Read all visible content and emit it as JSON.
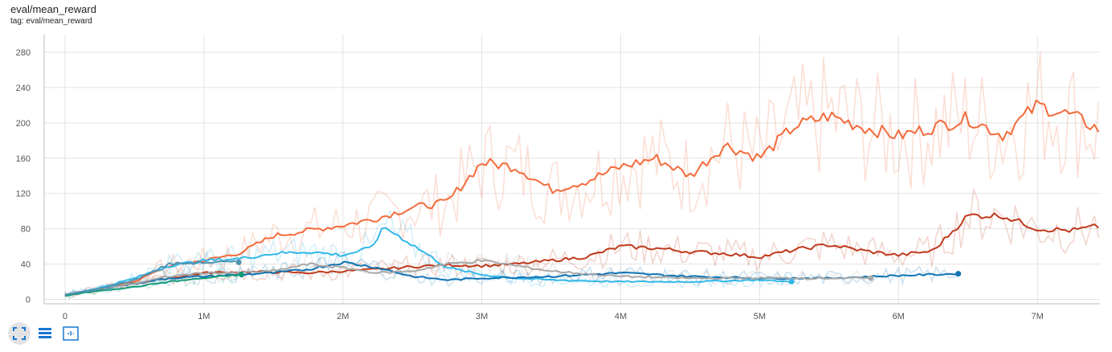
{
  "title": "eval/mean_reward",
  "tag": "tag: eval/mean_reward",
  "toolbar": {
    "icons": [
      "fit-to-screen-icon",
      "data-table-icon",
      "zoom-selection-icon"
    ]
  },
  "colors": {
    "orange": "#f26b3c",
    "dark_red": "#bf3a1c",
    "light_blue": "#33b8e8",
    "dark_blue": "#0f73b3",
    "gray": "#a8a8a8",
    "teal": "#129c7a",
    "slate": "#4d93b3"
  },
  "chart_data": {
    "type": "line",
    "title": "",
    "xlabel": "",
    "ylabel": "",
    "xlim": [
      -150000,
      7450000
    ],
    "ylim": [
      -5,
      300
    ],
    "x_ticks": [
      0,
      1000000,
      2000000,
      3000000,
      4000000,
      5000000,
      6000000,
      7000000
    ],
    "x_tick_labels": [
      "0",
      "1M",
      "2M",
      "3M",
      "4M",
      "5M",
      "6M",
      "7M"
    ],
    "y_ticks": [
      0,
      40,
      80,
      120,
      160,
      200,
      240,
      280
    ],
    "y_tick_labels": [
      "0",
      "40",
      "80",
      "120",
      "160",
      "200",
      "240",
      "280"
    ],
    "grid": true,
    "series": [
      {
        "color": "#f26b3c",
        "x": [
          0,
          250000,
          500000,
          750000,
          1000000,
          1250000,
          1500000,
          1750000,
          2000000,
          2250000,
          2500000,
          2750000,
          3000000,
          3250000,
          3500000,
          3750000,
          4000000,
          4250000,
          4500000,
          4750000,
          5000000,
          5250000,
          5500000,
          5750000,
          6000000,
          6250000,
          6500000,
          6750000,
          7000000,
          7250000,
          7450000
        ],
        "y": [
          5,
          12,
          20,
          38,
          44,
          52,
          72,
          78,
          84,
          92,
          104,
          110,
          155,
          150,
          124,
          134,
          150,
          160,
          140,
          175,
          160,
          196,
          208,
          195,
          185,
          195,
          205,
          186,
          220,
          208,
          192
        ]
      },
      {
        "color": "#bf3a1c",
        "x": [
          0,
          250000,
          500000,
          750000,
          1000000,
          1250000,
          1500000,
          1750000,
          2000000,
          2250000,
          2500000,
          2750000,
          3000000,
          3250000,
          3500000,
          3750000,
          4000000,
          4250000,
          4500000,
          4750000,
          5000000,
          5250000,
          5500000,
          5750000,
          6000000,
          6250000,
          6500000,
          6750000,
          7000000,
          7250000,
          7450000
        ],
        "y": [
          5,
          12,
          18,
          24,
          30,
          31,
          31,
          30,
          32,
          34,
          37,
          39,
          38,
          40,
          44,
          48,
          60,
          58,
          54,
          52,
          48,
          56,
          62,
          55,
          50,
          55,
          95,
          95,
          80,
          78,
          83
        ]
      },
      {
        "color": "#33b8e8",
        "x": [
          0,
          250000,
          500000,
          750000,
          1000000,
          1250000,
          1500000,
          1750000,
          2000000,
          2200000,
          2300000,
          2500000,
          2750000,
          3000000,
          3250000,
          3500000,
          4000000,
          4500000,
          5000000,
          5230000
        ],
        "y": [
          5,
          13,
          24,
          38,
          44,
          46,
          52,
          54,
          50,
          58,
          82,
          62,
          36,
          28,
          24,
          22,
          20,
          20,
          22,
          20
        ]
      },
      {
        "color": "#0f73b3",
        "x": [
          0,
          250000,
          500000,
          750000,
          1000000,
          1250000,
          1500000,
          1750000,
          2000000,
          2250000,
          2500000,
          2750000,
          3000000,
          3500000,
          4000000,
          4500000,
          5000000,
          5500000,
          6000000,
          6430000
        ],
        "y": [
          5,
          12,
          18,
          24,
          26,
          28,
          30,
          34,
          42,
          36,
          26,
          22,
          24,
          26,
          30,
          26,
          24,
          24,
          27,
          29
        ]
      },
      {
        "color": "#a8a8a8",
        "x": [
          0,
          250000,
          500000,
          750000,
          1000000,
          1250000,
          1500000,
          1750000,
          2000000,
          2250000,
          2500000,
          2750000,
          3000000,
          3250000,
          3500000,
          4000000,
          4500000,
          5000000,
          5500000,
          5800000
        ],
        "y": [
          5,
          12,
          18,
          26,
          30,
          30,
          32,
          40,
          36,
          30,
          32,
          40,
          44,
          38,
          32,
          26,
          24,
          24,
          24,
          24
        ]
      },
      {
        "color": "#129c7a",
        "x": [
          0,
          250000,
          500000,
          750000,
          1000000,
          1270000
        ],
        "y": [
          4,
          10,
          14,
          20,
          24,
          28
        ]
      },
      {
        "color": "#4d93b3",
        "x": [
          0,
          250000,
          500000,
          750000,
          1000000,
          1250000
        ],
        "y": [
          5,
          12,
          22,
          40,
          42,
          42
        ]
      }
    ]
  }
}
